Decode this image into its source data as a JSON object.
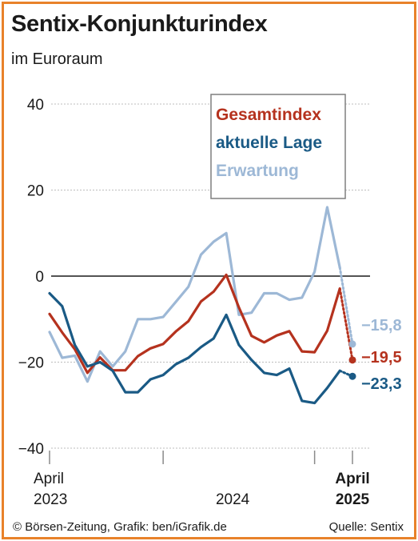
{
  "header": {
    "title": "Sentix-Konjunkturindex",
    "subtitle": "im Euroraum"
  },
  "footer": {
    "credit": "© Börsen-Zeitung, Grafik: ben/iGrafik.de",
    "source": "Quelle: Sentix"
  },
  "chart_data": {
    "type": "line",
    "ylim": [
      -40,
      40
    ],
    "yticks": [
      {
        "value": 40,
        "label": "40"
      },
      {
        "value": 20,
        "label": "20"
      },
      {
        "value": 0,
        "label": "0"
      },
      {
        "value": -20,
        "label": "−20"
      },
      {
        "value": -40,
        "label": "−40"
      }
    ],
    "x_months": [
      "2023-04",
      "2023-05",
      "2023-06",
      "2023-07",
      "2023-08",
      "2023-09",
      "2023-10",
      "2023-11",
      "2023-12",
      "2024-01",
      "2024-02",
      "2024-03",
      "2024-04",
      "2024-05",
      "2024-06",
      "2024-07",
      "2024-08",
      "2024-09",
      "2024-10",
      "2024-11",
      "2024-12",
      "2025-01",
      "2025-02",
      "2025-03",
      "2025-04"
    ],
    "xlabels": [
      {
        "month": "2023-04",
        "line1": "April",
        "line2": "2023",
        "bold": false
      },
      {
        "month": "2024-06",
        "line1": "",
        "line2": "2024",
        "bold": false
      },
      {
        "month": "2025-04",
        "line1": "April",
        "line2": "2025",
        "bold": true
      }
    ],
    "xticks": [
      "2023-04",
      "2024-01",
      "2025-01",
      "2025-04"
    ],
    "legend": {
      "placement": "top-right"
    },
    "series": [
      {
        "name": "Gesamtindex",
        "color": "#b5321e",
        "values": [
          -8.8,
          -13.1,
          -17,
          -22.5,
          -18.9,
          -21.9,
          -21.9,
          -18.6,
          -16.8,
          -15.8,
          -12.9,
          -10.5,
          -5.9,
          -3.6,
          0.3,
          -7.3,
          -13.9,
          -15.4,
          -13.8,
          -12.8,
          -17.5,
          -17.7,
          -12.7,
          -2.9,
          -19.5
        ],
        "end_label": "−19,5"
      },
      {
        "name": "aktuelle Lage",
        "color": "#1a5a85",
        "values": [
          -4,
          -7,
          -16,
          -21,
          -20,
          -22,
          -27,
          -27,
          -24,
          -23,
          -20.5,
          -19,
          -16.5,
          -14.5,
          -9,
          -16,
          -19.5,
          -22.5,
          -23,
          -21.5,
          -29,
          -29.5,
          -26,
          -22,
          -23.3
        ],
        "end_label": "−23,3"
      },
      {
        "name": "Erwartung",
        "color": "#9db8d6",
        "values": [
          -13,
          -19,
          -18.5,
          -24.5,
          -17.5,
          -21,
          -17.5,
          -10,
          -10,
          -9.5,
          -6,
          -2.5,
          5,
          8,
          10,
          -9,
          -8.5,
          -4,
          -4,
          -5.5,
          -5,
          1,
          16,
          2,
          -15.8
        ],
        "end_label": "−15,8"
      }
    ]
  }
}
